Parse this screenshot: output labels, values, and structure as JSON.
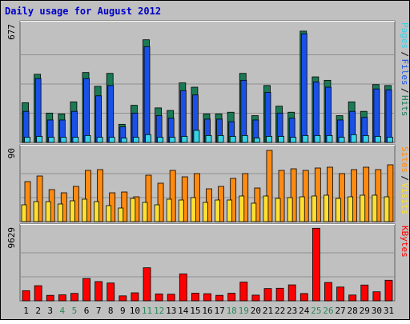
{
  "chart_data": {
    "type": "bar",
    "title": "Daily usage for August 2012",
    "categories": [
      "1",
      "2",
      "3",
      "4",
      "5",
      "6",
      "7",
      "8",
      "9",
      "10",
      "11",
      "12",
      "13",
      "14",
      "15",
      "16",
      "17",
      "18",
      "19",
      "20",
      "21",
      "22",
      "23",
      "24",
      "25",
      "26",
      "27",
      "28",
      "29",
      "30",
      "31"
    ],
    "weekend_days": [
      "4",
      "5",
      "11",
      "12",
      "18",
      "19",
      "25",
      "26"
    ],
    "panels": [
      {
        "id": "hits-files-pages",
        "ymax_label": "677",
        "ylim": [
          0,
          677
        ],
        "label_parts": [
          "Pages",
          "Files",
          "Hits"
        ],
        "series": [
          {
            "name": "Hits",
            "color": "#1a7a55",
            "values": [
              230,
              395,
              170,
              165,
              235,
              405,
              325,
              400,
              105,
              215,
              595,
              200,
              185,
              345,
              320,
              165,
              165,
              175,
              400,
              155,
              330,
              210,
              175,
              645,
              380,
              360,
              155,
              235,
              180,
              335,
              330
            ]
          },
          {
            "name": "Files",
            "color": "#1a50e6",
            "values": [
              180,
              370,
              130,
              130,
              180,
              370,
              270,
              330,
              90,
              170,
              555,
              155,
              140,
              300,
              275,
              135,
              135,
              120,
              360,
              130,
              290,
              170,
              140,
              630,
              350,
              320,
              130,
              180,
              145,
              310,
              305
            ]
          },
          {
            "name": "Pages",
            "color": "#37d2e6",
            "values": [
              30,
              35,
              30,
              30,
              30,
              40,
              30,
              30,
              25,
              30,
              45,
              30,
              30,
              35,
              70,
              40,
              40,
              35,
              40,
              25,
              35,
              35,
              30,
              40,
              40,
              40,
              30,
              45,
              40,
              35,
              30
            ]
          }
        ]
      },
      {
        "id": "visits-sites",
        "ymax_label": "90",
        "ylim": [
          0,
          90
        ],
        "label_parts": [
          "Sites",
          "Visits"
        ],
        "series": [
          {
            "name": "Visits",
            "color": "#ff8a10",
            "values": [
              50,
              57,
              40,
              36,
              44,
              64,
              65,
              36,
              37,
              31,
              58,
              48,
              64,
              56,
              60,
              41,
              44,
              54,
              60,
              42,
              89,
              64,
              66,
              64,
              67,
              68,
              60,
              65,
              68,
              65,
              71
            ]
          },
          {
            "name": "Sites",
            "color": "#ffe030",
            "values": [
              21,
              25,
              25,
              22,
              26,
              28,
              25,
              20,
              17,
              29,
              24,
              21,
              28,
              27,
              30,
              24,
              27,
              27,
              32,
              23,
              32,
              29,
              30,
              31,
              32,
              33,
              29,
              31,
              33,
              33,
              31
            ]
          }
        ]
      },
      {
        "id": "kbytes",
        "ymax_label": "9629",
        "ylim": [
          0,
          9629
        ],
        "label_parts": [
          "KBytes"
        ],
        "series": [
          {
            "name": "KBytes",
            "color": "#ff0000",
            "values": [
              1350,
              2020,
              730,
              800,
              990,
              2980,
              2570,
              2380,
              660,
              1070,
              4420,
              920,
              880,
              3600,
              1020,
              950,
              730,
              1010,
              2500,
              760,
              1640,
              1680,
              2130,
              970,
              9700,
              2450,
              1840,
              770,
              2110,
              1210,
              2750
            ]
          }
        ]
      }
    ]
  }
}
